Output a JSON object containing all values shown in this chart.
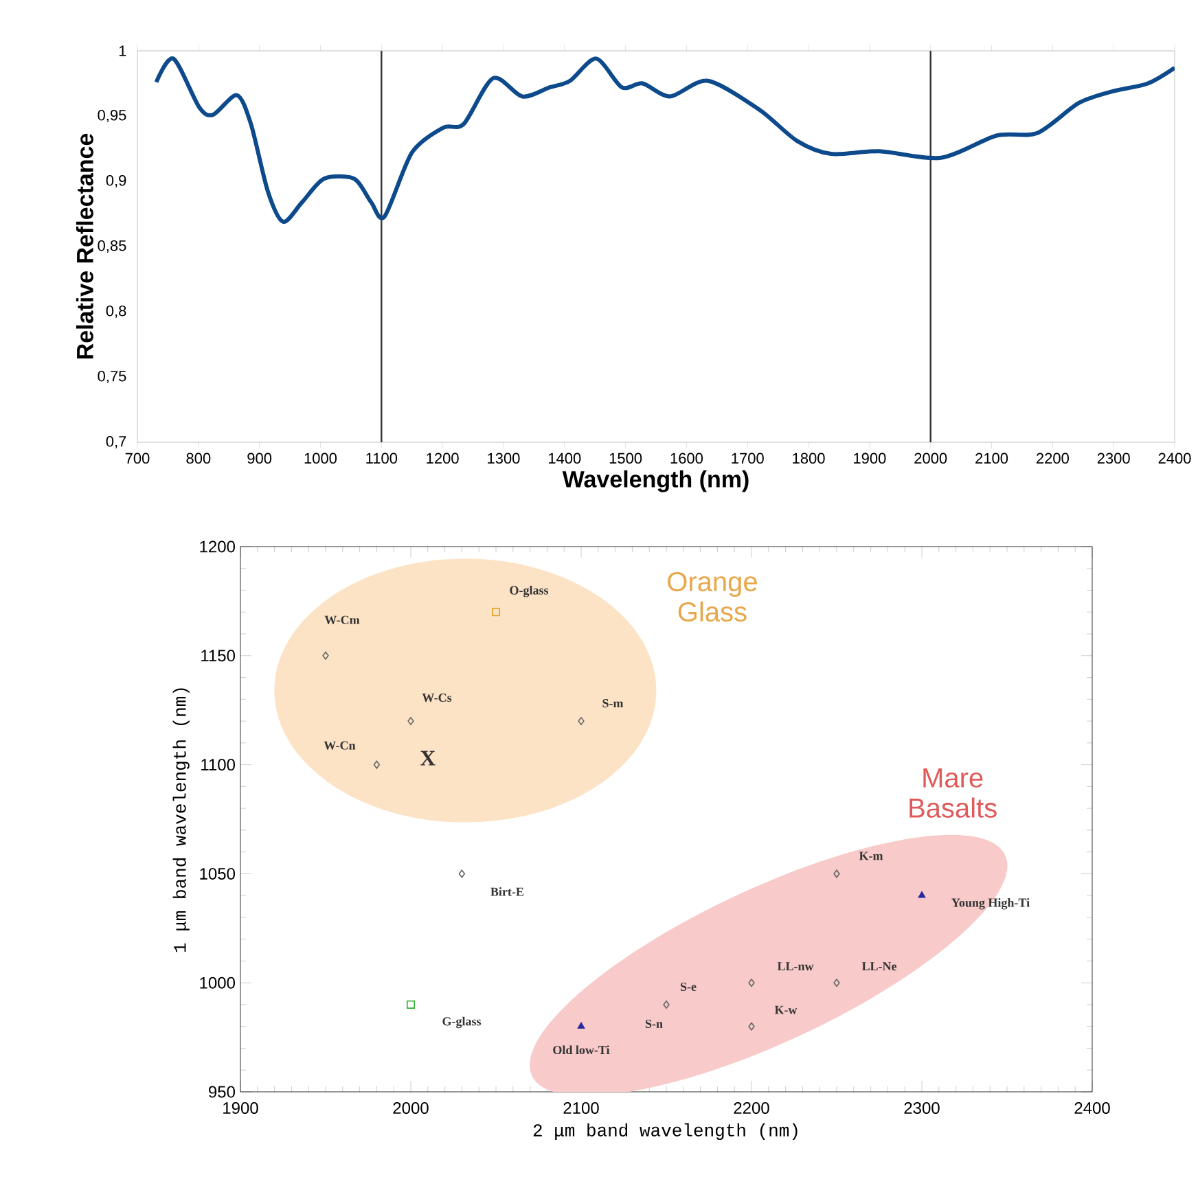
{
  "chart_data": [
    {
      "type": "line",
      "xlabel": "Wavelength (nm)",
      "ylabel": "Relative Reflectance",
      "x": [
        731,
        759,
        801,
        824,
        863,
        886,
        914,
        939,
        970,
        1006,
        1055,
        1083,
        1105,
        1150,
        1201,
        1235,
        1283,
        1331,
        1376,
        1409,
        1452,
        1494,
        1528,
        1573,
        1635,
        1719,
        1781,
        1837,
        1916,
        2017,
        2108,
        2175,
        2243,
        2299,
        2356,
        2400
      ],
      "series": [
        {
          "color": "#0d4a8c",
          "values": [
            0.976,
            0.994,
            0.957,
            0.951,
            0.966,
            0.944,
            0.892,
            0.869,
            0.884,
            0.902,
            0.902,
            0.884,
            0.873,
            0.922,
            0.941,
            0.944,
            0.979,
            0.965,
            0.972,
            0.977,
            0.994,
            0.972,
            0.975,
            0.965,
            0.977,
            0.955,
            0.931,
            0.921,
            0.923,
            0.918,
            0.935,
            0.937,
            0.96,
            0.969,
            0.975,
            0.987
          ]
        }
      ],
      "xlim": [
        700,
        2400
      ],
      "xticks": [
        700,
        800,
        900,
        1000,
        1100,
        1200,
        1300,
        1400,
        1500,
        1600,
        1700,
        1800,
        1900,
        2000,
        2100,
        2200,
        2300,
        2400
      ],
      "ylim": [
        0.7,
        1
      ],
      "yticks": [
        {
          "value": 0.7,
          "label": "0,7"
        },
        {
          "value": 0.75,
          "label": "0,75"
        },
        {
          "value": 0.8,
          "label": "0,8"
        },
        {
          "value": 0.85,
          "label": "0,85"
        },
        {
          "value": 0.9,
          "label": "0,9"
        },
        {
          "value": 0.95,
          "label": "0,95"
        },
        1
      ],
      "ref_lines": [
        {
          "axis": "x",
          "value": 1100,
          "color": "#333333"
        },
        {
          "axis": "x",
          "value": 2000,
          "color": "#333333"
        }
      ]
    },
    {
      "type": "scatter",
      "xlabel": "2 μm band wavelength (nm)",
      "ylabel": "1 μm band wavelength (nm)",
      "series": [
        {
          "marker": "diamond",
          "color": "#666666",
          "x": [
            1950,
            2000,
            2100,
            1980,
            2030,
            2150,
            2200,
            2200,
            2250,
            2250
          ],
          "values": [
            1150,
            1120,
            1120,
            1100,
            1050,
            990,
            1000,
            980,
            1000,
            1050
          ]
        },
        {
          "marker": "square",
          "color": "#e8a020",
          "x": [
            2050
          ],
          "values": [
            1170
          ]
        },
        {
          "marker": "square",
          "color": "#30b030",
          "x": [
            2000
          ],
          "values": [
            990
          ]
        },
        {
          "marker": "triangle",
          "color": "#2a2aa0",
          "x": [
            2100,
            2300
          ],
          "values": [
            980,
            1040
          ]
        }
      ],
      "xlim": [
        1900,
        2400
      ],
      "xticks": [
        1900,
        2000,
        2100,
        2200,
        2300,
        2400
      ],
      "ylim": [
        950,
        1200
      ],
      "yticks": [
        950,
        1000,
        1050,
        1100,
        1150,
        1200
      ],
      "annotations": [
        "Orange Glass",
        "Mare Basalts",
        {
          "text": "W-Cm",
          "x": 1950,
          "y": 1150
        },
        {
          "text": "O-glass",
          "x": 2050,
          "y": 1170
        },
        {
          "text": "W-Cs",
          "x": 2000,
          "y": 1120
        },
        {
          "text": "S-m",
          "x": 2100,
          "y": 1120
        },
        {
          "text": "W-Cn",
          "x": 1980,
          "y": 1100
        },
        "X",
        {
          "text": "Birt-E",
          "x": 2030,
          "y": 1050
        },
        {
          "text": "G-glass",
          "x": 2000,
          "y": 990
        },
        {
          "text": "Old low-Ti",
          "x": 2100,
          "y": 980
        },
        {
          "text": "S-n",
          "x": 2150,
          "y": 990
        },
        {
          "text": "S-e",
          "x": 2150,
          "y": 990
        },
        {
          "text": "LL-nw",
          "x": 2200,
          "y": 1000
        },
        {
          "text": "K-w",
          "x": 2200,
          "y": 980
        },
        {
          "text": "LL-Ne",
          "x": 2250,
          "y": 1000
        },
        {
          "text": "K-m",
          "x": 2250,
          "y": 1050
        },
        {
          "text": "Young High-Ti",
          "x": 2300,
          "y": 1040
        }
      ]
    }
  ]
}
